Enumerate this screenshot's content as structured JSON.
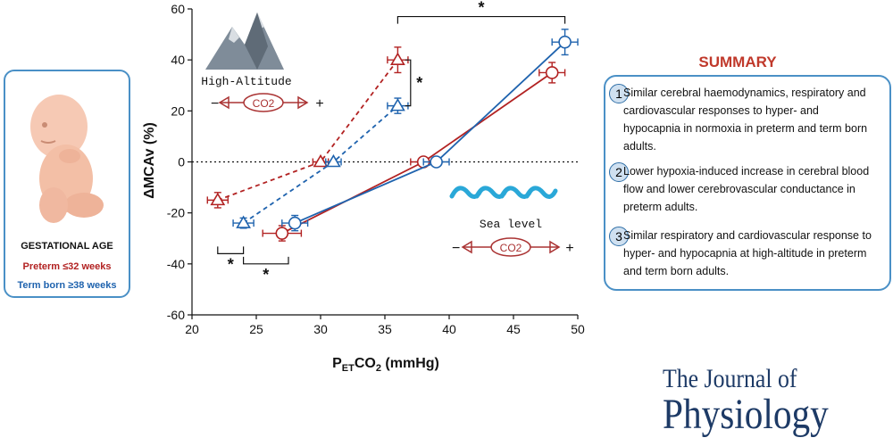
{
  "left_panel": {
    "title": "GESTATIONAL AGE",
    "preterm_label": "Preterm ≤32 weeks",
    "termborn_label": "Term born ≥38 weeks",
    "preterm_color": "#b22222",
    "termborn_color": "#1f63ae",
    "illustration": "fetus-icon"
  },
  "chart_data": {
    "type": "line",
    "xlabel": "PETCO2 (mmHg)",
    "ylabel": "ΔMCAv (%)",
    "xlim": [
      20,
      50
    ],
    "ylim": [
      -60,
      60
    ],
    "xticks": [
      20,
      25,
      30,
      35,
      40,
      45,
      50
    ],
    "yticks": [
      -60,
      -40,
      -20,
      0,
      20,
      40,
      60
    ],
    "series": [
      {
        "key": "preterm_high_altitude",
        "condition": "high-altitude",
        "group": "preterm",
        "color": "#b22222",
        "marker": "triangle",
        "linestyle": "dashed",
        "x": [
          22,
          30,
          36
        ],
        "y": [
          -15,
          0,
          40
        ],
        "yerr": [
          3,
          0.5,
          5
        ],
        "xerr": [
          0.8,
          0.6,
          0.8
        ]
      },
      {
        "key": "termborn_high_altitude",
        "condition": "high-altitude",
        "group": "term born",
        "color": "#1f63ae",
        "marker": "triangle",
        "linestyle": "dashed",
        "x": [
          24,
          31,
          36
        ],
        "y": [
          -24,
          0,
          22
        ],
        "yerr": [
          2,
          0.5,
          3
        ],
        "xerr": [
          0.8,
          0.6,
          0.8
        ]
      },
      {
        "key": "preterm_sea_level",
        "condition": "sea level",
        "group": "preterm",
        "color": "#b22222",
        "marker": "circle",
        "linestyle": "solid",
        "x": [
          27,
          38,
          48
        ],
        "y": [
          -28,
          0,
          35
        ],
        "yerr": [
          3,
          0.5,
          4
        ],
        "xerr": [
          1.5,
          1,
          1
        ]
      },
      {
        "key": "termborn_sea_level",
        "condition": "sea level",
        "group": "term born",
        "color": "#1f63ae",
        "marker": "circle",
        "linestyle": "solid",
        "x": [
          28,
          39,
          49
        ],
        "y": [
          -24,
          0,
          47
        ],
        "yerr": [
          3,
          0.5,
          5
        ],
        "xerr": [
          1,
          1,
          1
        ]
      }
    ],
    "significance": [
      {
        "label": "*",
        "kind": "horizontal",
        "x": [
          36,
          49
        ],
        "y": 57
      },
      {
        "label": "*",
        "kind": "vertical",
        "x": 37,
        "y": [
          22,
          40
        ]
      },
      {
        "label": "*",
        "kind": "horizontal",
        "x": [
          22,
          24
        ],
        "y": -36
      },
      {
        "label": "*",
        "kind": "horizontal",
        "x": [
          24,
          27.5
        ],
        "y": -40
      }
    ],
    "annotations": [
      {
        "text": "High-Altitude",
        "condition": "high-altitude",
        "icon": "mountain-icon"
      },
      {
        "text": "Sea level",
        "condition": "sea level",
        "icon": "wave-icon"
      }
    ],
    "co2_scale": {
      "label": "CO2",
      "minus": "−",
      "plus": "+"
    }
  },
  "summary": {
    "title": "SUMMARY",
    "title_color": "#c0392b",
    "items": [
      {
        "num": "1",
        "text": "Similar cerebral haemodynamics, respiratory and cardiovascular responses to hyper- and hypocapnia in normoxia in preterm and term born adults."
      },
      {
        "num": "2",
        "text": "Lower hypoxia-induced increase in cerebral blood flow and lower cerebrovascular conductance in preterm adults."
      },
      {
        "num": "3",
        "text": "Similar respiratory and cardiovascular response to hyper- and hypocapnia at high-altitude in preterm and term born adults."
      }
    ]
  },
  "journal": {
    "line1": "The Journal of",
    "line2": "Physiology"
  }
}
